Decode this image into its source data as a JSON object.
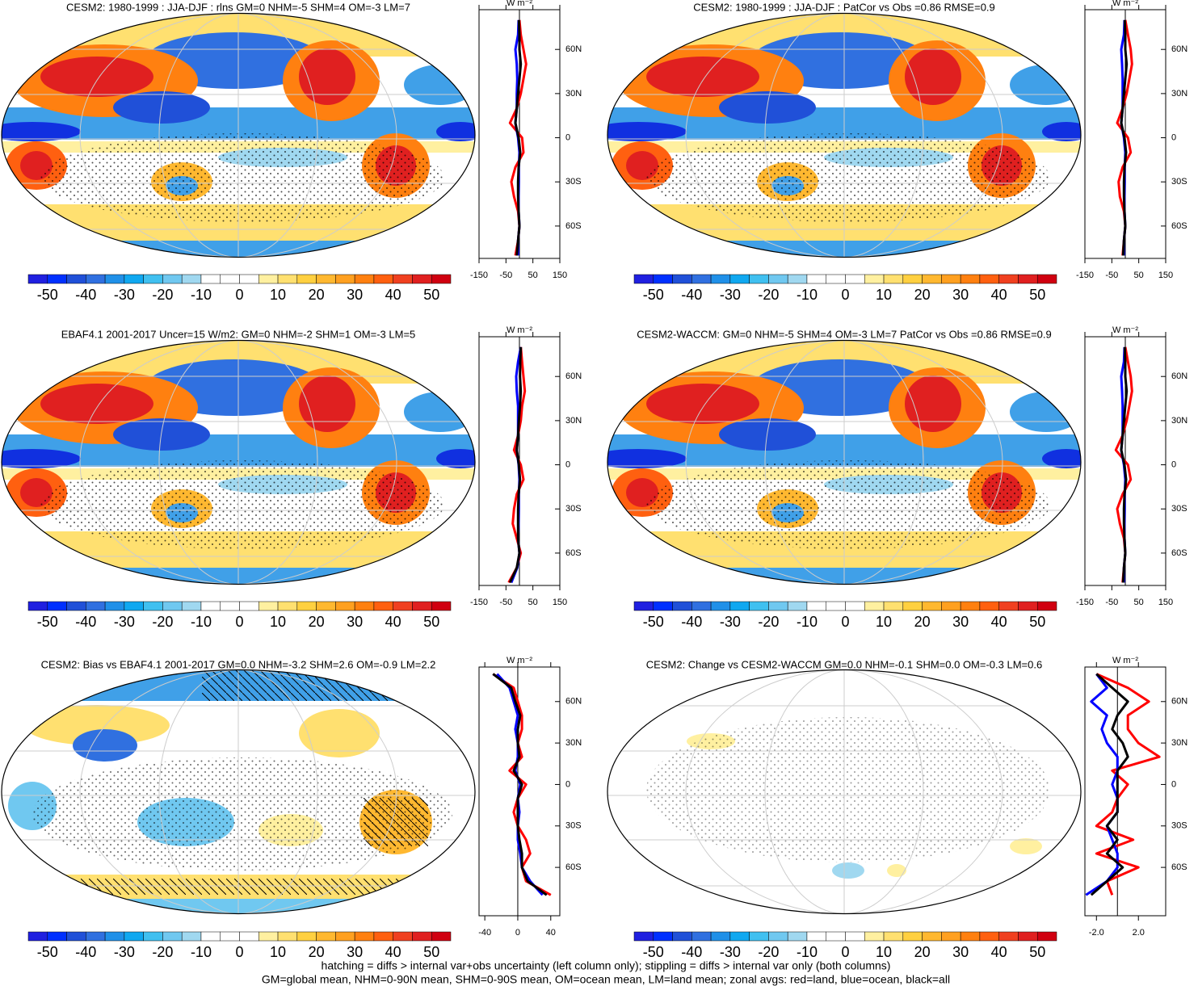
{
  "chart_data": [
    {
      "type": "map-panel",
      "title": "CESM2: 1980-1999 : JJA-DJF : rlns GM=0 NHM=-5 SHM=4 OM=-3 LM=7",
      "colorbar": {
        "lim": [
          -55,
          55
        ],
        "ticks": [
          -50,
          -40,
          -30,
          -20,
          -10,
          0,
          10,
          20,
          30,
          40,
          50
        ],
        "colors": [
          "#2020e0",
          "#0030ff",
          "#2050d8",
          "#3070e0",
          "#2090e8",
          "#10a8f0",
          "#40c0f0",
          "#70c8f0",
          "#a0d8f0",
          "#ffffff",
          "#ffffff",
          "#ffffff",
          "#fff0a0",
          "#ffe070",
          "#ffd040",
          "#ffb830",
          "#ffa020",
          "#ff8010",
          "#ff6010",
          "#f04020",
          "#e02020",
          "#d00010"
        ]
      },
      "zonal": {
        "unit": "W m⁻²",
        "xlim": [
          -150,
          150
        ],
        "xticks": [
          -150,
          -50,
          50,
          150
        ],
        "ylim": [
          -82,
          87
        ],
        "yticks": [
          {
            "value": 60,
            "label": "60N"
          },
          {
            "value": 30,
            "label": "30N"
          },
          0,
          {
            "value": -30,
            "label": "30S"
          },
          {
            "value": -60,
            "label": "60S"
          }
        ],
        "lat": [
          -80,
          -70,
          -60,
          -50,
          -40,
          -30,
          -20,
          -10,
          0,
          10,
          20,
          30,
          40,
          50,
          60,
          70,
          80
        ],
        "series": [
          {
            "color": "#ff0000",
            "values": [
              -15,
              -5,
              0,
              -5,
              -20,
              -30,
              -15,
              15,
              10,
              -35,
              -10,
              5,
              15,
              25,
              15,
              5,
              0
            ]
          },
          {
            "color": "#0000ff",
            "values": [
              -5,
              -5,
              0,
              -3,
              -3,
              -2,
              -2,
              0,
              -5,
              -15,
              -10,
              -10,
              -8,
              -10,
              -15,
              -5,
              -3
            ]
          },
          {
            "color": "#000000",
            "values": [
              -10,
              -5,
              0,
              -3,
              -5,
              -5,
              -3,
              3,
              -3,
              -15,
              -10,
              -5,
              0,
              5,
              0,
              0,
              -2
            ]
          }
        ]
      }
    },
    {
      "type": "map-panel",
      "title": "CESM2: 1980-1999 : JJA-DJF : PatCor vs Obs =0.86 RMSE=0.9",
      "colorbar": {
        "lim": [
          -55,
          55
        ],
        "ticks": [
          -50,
          -40,
          -30,
          -20,
          -10,
          0,
          10,
          20,
          30,
          40,
          50
        ],
        "colors": [
          "#2020e0",
          "#0030ff",
          "#2050d8",
          "#3070e0",
          "#2090e8",
          "#10a8f0",
          "#40c0f0",
          "#70c8f0",
          "#a0d8f0",
          "#ffffff",
          "#ffffff",
          "#ffffff",
          "#fff0a0",
          "#ffe070",
          "#ffd040",
          "#ffb830",
          "#ffa020",
          "#ff8010",
          "#ff6010",
          "#f04020",
          "#e02020",
          "#d00010"
        ]
      },
      "zonal": {
        "unit": "W m⁻²",
        "xlim": [
          -150,
          150
        ],
        "xticks": [
          -150,
          -50,
          50,
          150
        ],
        "ylim": [
          -82,
          87
        ],
        "yticks": [
          {
            "value": 60,
            "label": "60N"
          },
          {
            "value": 30,
            "label": "30N"
          },
          0,
          {
            "value": -30,
            "label": "30S"
          },
          {
            "value": -60,
            "label": "60S"
          }
        ],
        "lat": [
          -80,
          -70,
          -60,
          -50,
          -40,
          -30,
          -20,
          -10,
          0,
          10,
          20,
          30,
          40,
          50,
          60,
          70,
          80
        ],
        "series": [
          {
            "color": "#ff0000",
            "values": [
              -10,
              -5,
              0,
              -5,
              -20,
              -25,
              -10,
              20,
              10,
              -30,
              -10,
              5,
              15,
              25,
              20,
              10,
              0
            ]
          },
          {
            "color": "#0000ff",
            "values": [
              -5,
              -5,
              0,
              -3,
              -3,
              -2,
              -2,
              0,
              -5,
              -15,
              -10,
              -10,
              -10,
              -12,
              -15,
              -5,
              -3
            ]
          },
          {
            "color": "#000000",
            "values": [
              -8,
              -5,
              0,
              -3,
              -5,
              -5,
              -3,
              3,
              -3,
              -15,
              -10,
              -5,
              0,
              5,
              0,
              0,
              -2
            ]
          }
        ]
      }
    },
    {
      "type": "map-panel",
      "title": "EBAF4.1 2001-2017 Uncer=15 W/m2: GM=0 NHM=-2 SHM=1 OM=-3 LM=5",
      "colorbar": {
        "lim": [
          -55,
          55
        ],
        "ticks": [
          -50,
          -40,
          -30,
          -20,
          -10,
          0,
          10,
          20,
          30,
          40,
          50
        ],
        "colors": [
          "#2020e0",
          "#0030ff",
          "#2050d8",
          "#3070e0",
          "#2090e8",
          "#10a8f0",
          "#40c0f0",
          "#70c8f0",
          "#a0d8f0",
          "#ffffff",
          "#ffffff",
          "#ffffff",
          "#fff0a0",
          "#ffe070",
          "#ffd040",
          "#ffb830",
          "#ffa020",
          "#ff8010",
          "#ff6010",
          "#f04020",
          "#e02020",
          "#d00010"
        ]
      },
      "zonal": {
        "unit": "W m⁻²",
        "xlim": [
          -150,
          150
        ],
        "xticks": [
          -150,
          -50,
          50,
          150
        ],
        "ylim": [
          -82,
          87
        ],
        "yticks": [
          {
            "value": 60,
            "label": "60N"
          },
          {
            "value": 30,
            "label": "30N"
          },
          0,
          {
            "value": -30,
            "label": "30S"
          },
          {
            "value": -60,
            "label": "60S"
          }
        ],
        "lat": [
          -80,
          -70,
          -60,
          -50,
          -40,
          -30,
          -20,
          -10,
          0,
          10,
          20,
          30,
          40,
          50,
          60,
          70,
          80
        ],
        "series": [
          {
            "color": "#ff0000",
            "values": [
              -40,
              -10,
              5,
              -10,
              -25,
              -20,
              -10,
              15,
              5,
              -20,
              -5,
              5,
              10,
              20,
              15,
              10,
              5
            ]
          },
          {
            "color": "#0000ff",
            "values": [
              -30,
              -8,
              0,
              -5,
              -3,
              -2,
              -2,
              0,
              -3,
              -10,
              -5,
              -5,
              -5,
              -10,
              -12,
              -5,
              5
            ]
          },
          {
            "color": "#000000",
            "values": [
              -35,
              -10,
              0,
              -5,
              -5,
              -5,
              -3,
              2,
              -2,
              -10,
              -5,
              -2,
              2,
              5,
              2,
              3,
              5
            ]
          }
        ]
      }
    },
    {
      "type": "map-panel",
      "title": "CESM2-WACCM: GM=0 NHM=-5 SHM=4 OM=-3 LM=7 PatCor vs Obs =0.86 RMSE=0.9",
      "colorbar": {
        "lim": [
          -55,
          55
        ],
        "ticks": [
          -50,
          -40,
          -30,
          -20,
          -10,
          0,
          10,
          20,
          30,
          40,
          50
        ],
        "colors": [
          "#2020e0",
          "#0030ff",
          "#2050d8",
          "#3070e0",
          "#2090e8",
          "#10a8f0",
          "#40c0f0",
          "#70c8f0",
          "#a0d8f0",
          "#ffffff",
          "#ffffff",
          "#ffffff",
          "#fff0a0",
          "#ffe070",
          "#ffd040",
          "#ffb830",
          "#ffa020",
          "#ff8010",
          "#ff6010",
          "#f04020",
          "#e02020",
          "#d00010"
        ]
      },
      "zonal": {
        "unit": "W m⁻²",
        "xlim": [
          -150,
          150
        ],
        "xticks": [
          -150,
          -50,
          50,
          150
        ],
        "ylim": [
          -82,
          87
        ],
        "yticks": [
          {
            "value": 60,
            "label": "60N"
          },
          {
            "value": 30,
            "label": "30N"
          },
          0,
          {
            "value": -30,
            "label": "30S"
          },
          {
            "value": -60,
            "label": "60S"
          }
        ],
        "lat": [
          -80,
          -70,
          -60,
          -50,
          -40,
          -30,
          -20,
          -10,
          0,
          10,
          20,
          30,
          40,
          50,
          60,
          70,
          80
        ],
        "series": [
          {
            "color": "#ff0000",
            "values": [
              -10,
              -5,
              0,
              -5,
              -20,
              -30,
              -10,
              20,
              10,
              -35,
              -10,
              5,
              15,
              25,
              20,
              10,
              0
            ]
          },
          {
            "color": "#0000ff",
            "values": [
              -5,
              -5,
              0,
              -3,
              -3,
              -2,
              -2,
              0,
              -5,
              -15,
              -10,
              -10,
              -10,
              -12,
              -15,
              -5,
              -3
            ]
          },
          {
            "color": "#000000",
            "values": [
              -8,
              -5,
              0,
              -3,
              -5,
              -5,
              -3,
              3,
              -3,
              -15,
              -10,
              -5,
              0,
              5,
              0,
              0,
              -2
            ]
          }
        ]
      }
    },
    {
      "type": "map-panel",
      "title": "CESM2: Bias vs EBAF4.1 2001-2017 GM=0.0 NHM=-3.2 SHM=2.6 OM=-0.9 LM=2.2",
      "colorbar": {
        "lim": [
          -55,
          55
        ],
        "ticks": [
          -50,
          -40,
          -30,
          -20,
          -10,
          0,
          10,
          20,
          30,
          40,
          50
        ],
        "colors": [
          "#2020e0",
          "#0030ff",
          "#2050d8",
          "#3070e0",
          "#2090e8",
          "#10a8f0",
          "#40c0f0",
          "#70c8f0",
          "#a0d8f0",
          "#ffffff",
          "#ffffff",
          "#ffffff",
          "#fff0a0",
          "#ffe070",
          "#ffd040",
          "#ffb830",
          "#ffa020",
          "#ff8010",
          "#ff6010",
          "#f04020",
          "#e02020",
          "#d00010"
        ]
      },
      "zonal": {
        "unit": "W m⁻²",
        "xlim": [
          -47,
          51
        ],
        "xticks": [
          -40,
          0,
          40
        ],
        "ylim": [
          -95,
          85
        ],
        "yticks": [
          {
            "value": 60,
            "label": "60N"
          },
          {
            "value": 30,
            "label": "30N"
          },
          0,
          {
            "value": -30,
            "label": "30S"
          },
          {
            "value": -60,
            "label": "60S"
          }
        ],
        "lat": [
          -80,
          -70,
          -60,
          -50,
          -40,
          -30,
          -20,
          -10,
          0,
          10,
          20,
          30,
          40,
          50,
          60,
          70,
          80
        ],
        "series": [
          {
            "color": "#ff0000",
            "values": [
              40,
              10,
              5,
              15,
              10,
              0,
              -5,
              0,
              10,
              -10,
              5,
              0,
              5,
              5,
              0,
              -5,
              -30
            ]
          },
          {
            "color": "#0000ff",
            "values": [
              30,
              15,
              5,
              3,
              0,
              0,
              2,
              0,
              3,
              -3,
              0,
              0,
              -3,
              0,
              -5,
              -10,
              -25
            ]
          },
          {
            "color": "#000000",
            "values": [
              35,
              12,
              5,
              5,
              2,
              0,
              0,
              0,
              5,
              -5,
              2,
              0,
              0,
              3,
              -3,
              -8,
              -30
            ]
          }
        ]
      }
    },
    {
      "type": "map-panel",
      "title": "CESM2: Change vs CESM2-WACCM GM=0.0 NHM=-0.1 SHM=0.0 OM=-0.3 LM=0.6",
      "colorbar": {
        "lim": [
          -55,
          55
        ],
        "ticks": [
          -50,
          -40,
          -30,
          -20,
          -10,
          0,
          10,
          20,
          30,
          40,
          50
        ],
        "colors": [
          "#2020e0",
          "#0030ff",
          "#2050d8",
          "#3070e0",
          "#2090e8",
          "#10a8f0",
          "#40c0f0",
          "#70c8f0",
          "#a0d8f0",
          "#ffffff",
          "#ffffff",
          "#ffffff",
          "#fff0a0",
          "#ffe070",
          "#ffd040",
          "#ffb830",
          "#ffa020",
          "#ff8010",
          "#ff6010",
          "#f04020",
          "#e02020",
          "#d00010"
        ]
      },
      "zonal": {
        "unit": "W m⁻²",
        "xlim": [
          -3.1,
          4.6
        ],
        "xticks": [
          {
            "value": -2,
            "label": "-2.0"
          },
          {
            "value": 2,
            "label": "2.0"
          }
        ],
        "ylim": [
          -95,
          85
        ],
        "yticks": [
          {
            "value": 60,
            "label": "60N"
          },
          {
            "value": 30,
            "label": "30N"
          },
          0,
          {
            "value": -30,
            "label": "30S"
          },
          {
            "value": -60,
            "label": "60S"
          }
        ],
        "lat": [
          -80,
          -70,
          -60,
          -50,
          -40,
          -30,
          -20,
          -10,
          0,
          10,
          20,
          30,
          40,
          50,
          60,
          70,
          80
        ],
        "series": [
          {
            "color": "#ff0000",
            "values": [
              -0.5,
              -1,
              2,
              -2,
              1.5,
              -2,
              -0.5,
              0,
              1,
              -0.5,
              4,
              2,
              1,
              1,
              3,
              1,
              -2
            ]
          },
          {
            "color": "#0000ff",
            "values": [
              -3,
              -1,
              0,
              0,
              -0.5,
              -1,
              0,
              0,
              -0.5,
              0,
              0,
              -1,
              -1.5,
              -1,
              -2.5,
              -1,
              -2
            ]
          },
          {
            "color": "#000000",
            "values": [
              -2.5,
              -1,
              0.5,
              -1,
              0,
              -1,
              0,
              0,
              0,
              0,
              1,
              0.5,
              -0.5,
              0,
              1,
              -0.5,
              -2
            ]
          }
        ]
      }
    }
  ],
  "footer": [
    "hatching = diffs > internal var+obs uncertainty (left column only); stippling = diffs > internal var only (both columns)",
    "GM=global mean, NHM=0-90N mean, SHM=0-90S mean, OM=ocean mean, LM=land mean; zonal avgs: red=land, blue=ocean, black=all"
  ]
}
